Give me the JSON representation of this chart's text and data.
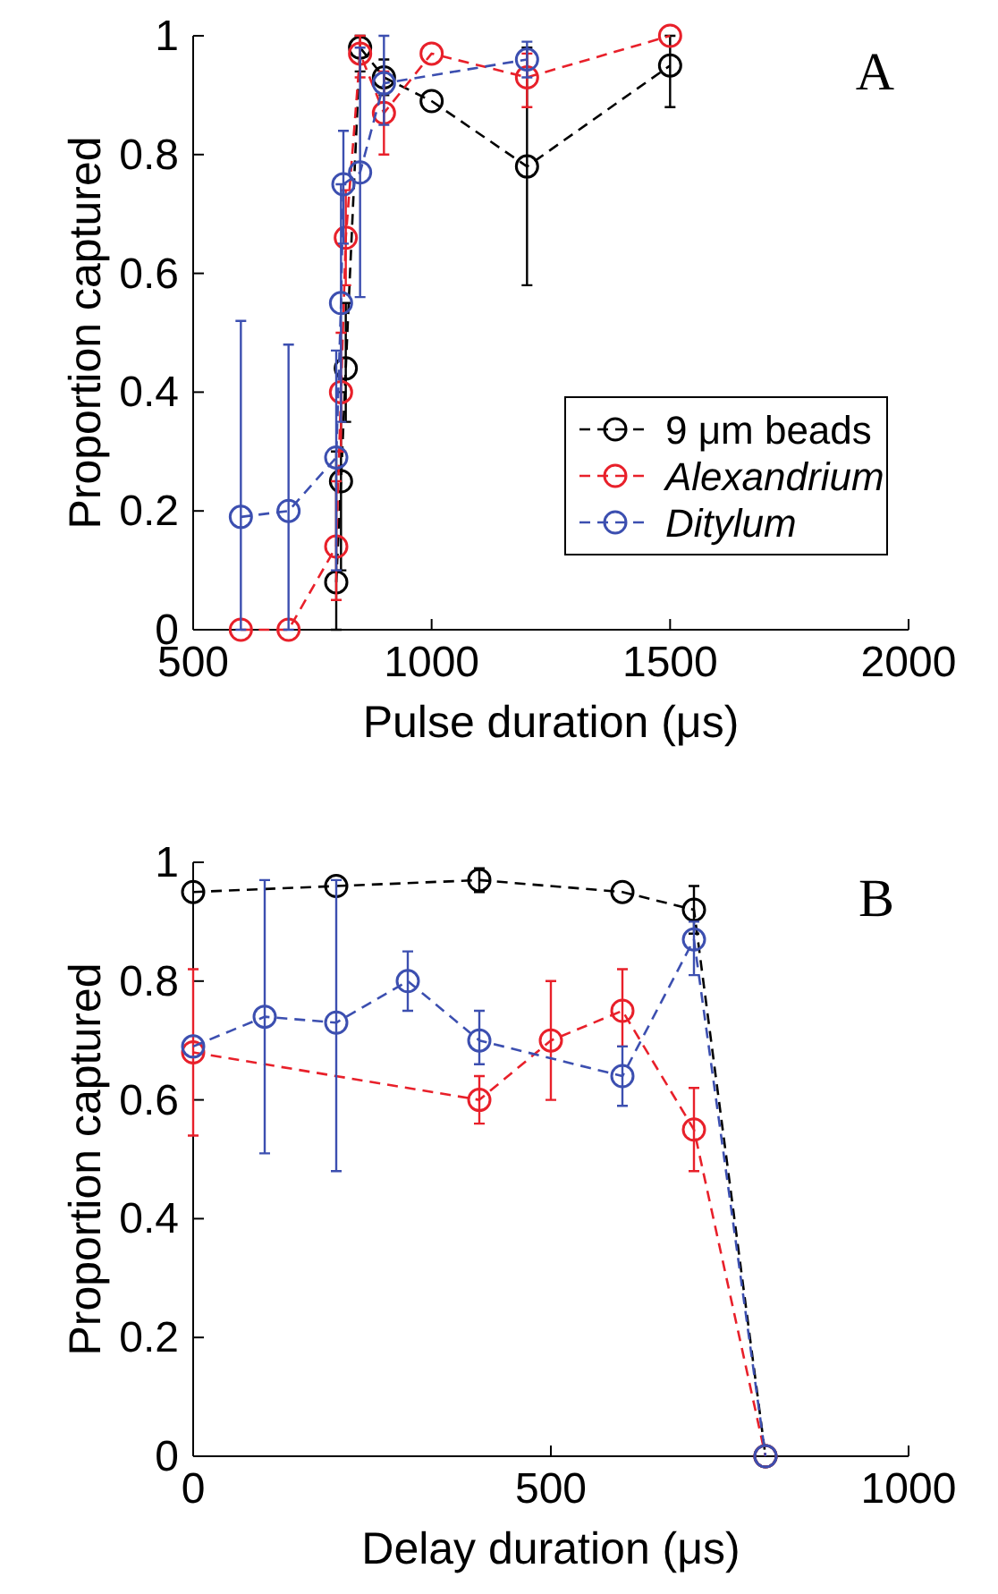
{
  "chart_data": [
    {
      "type": "line",
      "xlabel": "Pulse duration (μs)",
      "ylabel": "Proportion captured",
      "xlim": [
        500,
        2000
      ],
      "xticks": [
        500,
        1000,
        1500,
        2000
      ],
      "ylim": [
        0,
        1
      ],
      "yticks": [
        0,
        0.2,
        0.4,
        0.6,
        0.8,
        1
      ],
      "marker": "circle",
      "line_style": "dashed",
      "legend": "bottom right",
      "grid": false,
      "annotations": [
        "A"
      ],
      "series": [
        {
          "name": "9 μm beads",
          "color": "#000000",
          "x": [
            800,
            810,
            820,
            850,
            900,
            1000,
            1200,
            1500
          ],
          "values": [
            0.08,
            0.25,
            0.44,
            0.98,
            0.93,
            0.89,
            0.78,
            0.95
          ],
          "errors": [
            [
              0,
              0.3
            ],
            [
              0.1,
              0.4
            ],
            [
              0.35,
              0.55
            ],
            [
              0.94,
              1
            ],
            [
              0.9,
              0.96
            ],
            null,
            [
              0.58,
              0.98
            ],
            [
              0.88,
              1
            ]
          ]
        },
        {
          "name": "Alexandrium",
          "color": "#e8202a",
          "x": [
            600,
            700,
            800,
            810,
            820,
            850,
            900,
            1000,
            1200,
            1500
          ],
          "values": [
            0,
            0,
            0.14,
            0.4,
            0.66,
            0.97,
            0.87,
            0.97,
            0.93,
            1
          ],
          "errors": [
            null,
            null,
            [
              0.05,
              0.25
            ],
            [
              0.3,
              0.5
            ],
            [
              0.58,
              0.74
            ],
            [
              0.93,
              1
            ],
            [
              0.8,
              0.94
            ],
            null,
            [
              0.88,
              0.97
            ],
            null
          ]
        },
        {
          "name": "Ditylum",
          "color": "#3c4fb0",
          "x": [
            600,
            700,
            800,
            810,
            815,
            850,
            900,
            1200
          ],
          "values": [
            0.19,
            0.2,
            0.29,
            0.55,
            0.75,
            0.77,
            0.92,
            0.96
          ],
          "errors": [
            [
              0,
              0.52
            ],
            [
              0,
              0.48
            ],
            [
              0.1,
              0.47
            ],
            [
              0.35,
              0.75
            ],
            [
              0.65,
              0.84
            ],
            [
              0.56,
              0.98
            ],
            [
              0.85,
              1
            ],
            [
              0.93,
              0.99
            ]
          ]
        }
      ]
    },
    {
      "type": "line",
      "xlabel": "Delay duration (μs)",
      "ylabel": "Proportion captured",
      "xlim": [
        0,
        1000
      ],
      "xticks": [
        0,
        500,
        1000
      ],
      "ylim": [
        0,
        1
      ],
      "yticks": [
        0,
        0.2,
        0.4,
        0.6,
        0.8,
        1
      ],
      "marker": "circle",
      "line_style": "dashed",
      "grid": false,
      "annotations": [
        "B"
      ],
      "series": [
        {
          "color": "#000000",
          "x": [
            0,
            200,
            400,
            600,
            700,
            800
          ],
          "values": [
            0.95,
            0.96,
            0.97,
            0.95,
            0.92,
            0
          ],
          "errors": [
            null,
            null,
            [
              0.95,
              0.99
            ],
            null,
            [
              0.88,
              0.96
            ],
            null
          ]
        },
        {
          "color": "#e8202a",
          "x": [
            0,
            400,
            500,
            600,
            700,
            800
          ],
          "values": [
            0.68,
            0.6,
            0.7,
            0.75,
            0.55,
            0
          ],
          "errors": [
            [
              0.54,
              0.82
            ],
            [
              0.56,
              0.64
            ],
            [
              0.6,
              0.8
            ],
            [
              0.69,
              0.82
            ],
            [
              0.48,
              0.62
            ],
            null
          ]
        },
        {
          "color": "#3c4fb0",
          "x": [
            0,
            100,
            200,
            300,
            400,
            600,
            700,
            800
          ],
          "values": [
            0.69,
            0.74,
            0.73,
            0.8,
            0.7,
            0.64,
            0.87,
            0
          ],
          "errors": [
            null,
            [
              0.51,
              0.97
            ],
            [
              0.48,
              0.97
            ],
            [
              0.75,
              0.85
            ],
            [
              0.66,
              0.75
            ],
            [
              0.59,
              0.69
            ],
            [
              0.81,
              0.9
            ],
            null
          ]
        }
      ]
    }
  ]
}
